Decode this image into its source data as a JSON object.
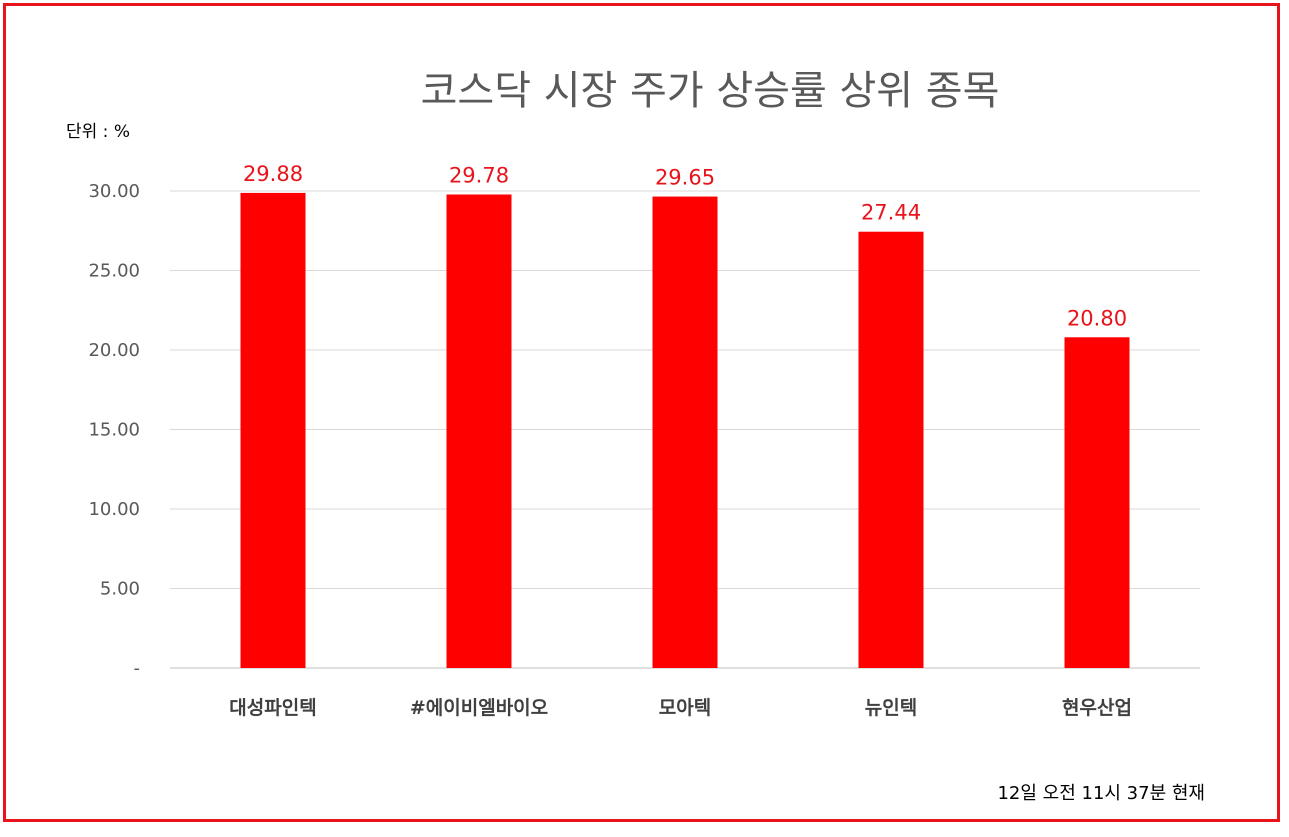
{
  "chart_data": {
    "type": "bar",
    "title": "코스닥 시장 주가 상승률 상위 종목",
    "unit_label": "단위 : %",
    "footnote": "12일  오전 11시 37분 현재",
    "categories": [
      "대성파인텍",
      "#에이비엘바이오",
      "모아텍",
      "뉴인텍",
      "현우산업"
    ],
    "values": [
      29.88,
      29.78,
      29.65,
      27.44,
      20.8
    ],
    "data_labels": [
      "29.88",
      "29.78",
      "29.65",
      "27.44",
      "20.80"
    ],
    "y_ticks": [
      0,
      5,
      10,
      15,
      20,
      25,
      30
    ],
    "y_tick_labels": [
      "-",
      "5.00",
      "10.00",
      "15.00",
      "20.00",
      "25.00",
      "30.00"
    ],
    "ylim": [
      0,
      30
    ],
    "grid": true,
    "legend": "none",
    "bar_color": "#ff0000",
    "label_color": "#e8141b",
    "frame_color": "#e8141b"
  }
}
